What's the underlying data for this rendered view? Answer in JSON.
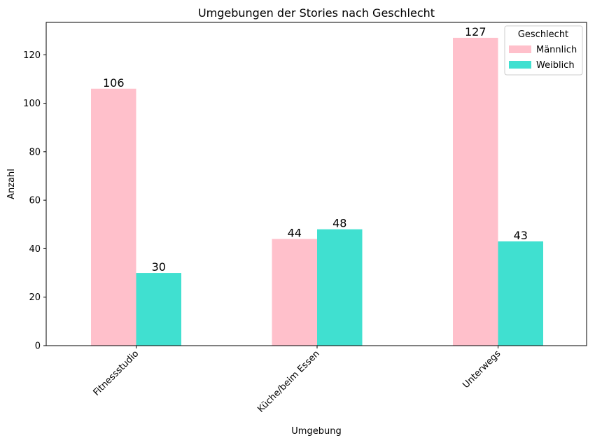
{
  "chart_data": {
    "type": "bar",
    "title": "Umgebungen der Stories nach Geschlecht",
    "xlabel": "Umgebung",
    "ylabel": "Anzahl",
    "categories": [
      "Fitnessstudio",
      "Küche/beim Essen",
      "Unterwegs"
    ],
    "series": [
      {
        "name": "Männlich",
        "values": [
          106,
          44,
          127
        ],
        "color": "#ffc0cb"
      },
      {
        "name": "Weiblich",
        "values": [
          30,
          48,
          43
        ],
        "color": "#40e0d0"
      }
    ],
    "ylim": [
      0,
      133.35
    ],
    "yticks": [
      0,
      20,
      40,
      60,
      80,
      100,
      120
    ],
    "grid": false,
    "legend": {
      "title": "Geschlecht",
      "placement": "top-right"
    },
    "data_labels": true
  }
}
